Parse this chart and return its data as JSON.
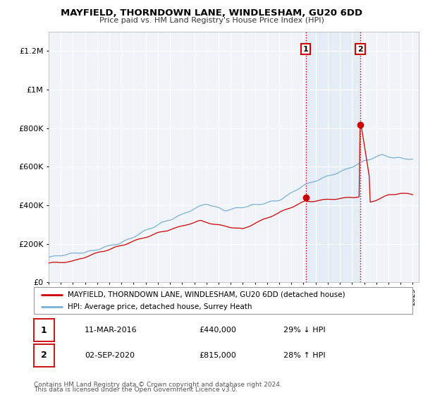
{
  "title": "MAYFIELD, THORNDOWN LANE, WINDLESHAM, GU20 6DD",
  "subtitle": "Price paid vs. HM Land Registry's House Price Index (HPI)",
  "ylim": [
    0,
    1300000
  ],
  "yticks": [
    0,
    200000,
    400000,
    600000,
    800000,
    1000000,
    1200000
  ],
  "xlim_start": 1995.0,
  "xlim_end": 2025.5,
  "background_color": "#ffffff",
  "plot_bg_color": "#f0f4f8",
  "grid_color": "#ffffff",
  "sale_color": "#cc0000",
  "hpi_color": "#7ab0d4",
  "sale_label": "MAYFIELD, THORNDOWN LANE, WINDLESHAM, GU20 6DD (detached house)",
  "hpi_label": "HPI: Average price, detached house, Surrey Heath",
  "transaction1_date": 2016.19,
  "transaction1_price": 440000,
  "transaction2_date": 2020.67,
  "transaction2_price": 815000,
  "footer1": "Contains HM Land Registry data © Crown copyright and database right 2024.",
  "footer2": "This data is licensed under the Open Government Licence v3.0.",
  "vline_color": "#cc0000",
  "vline_bg_color": "#dde8f5",
  "transaction_box_border": "#cc0000"
}
